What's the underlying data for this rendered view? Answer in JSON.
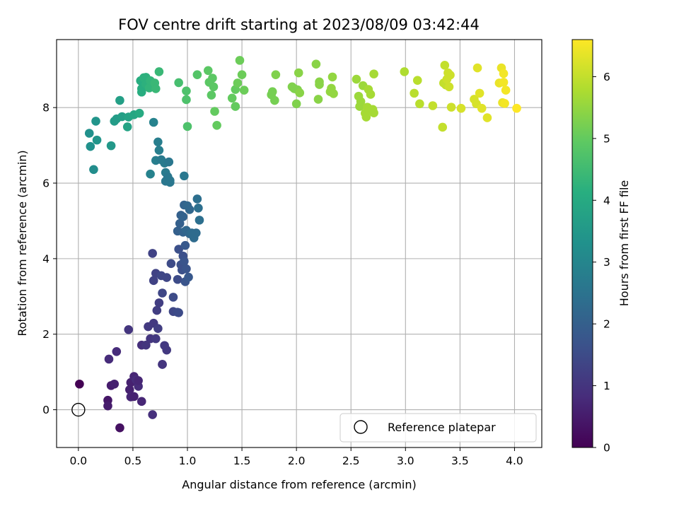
{
  "chart_data": {
    "type": "scatter",
    "title": "FOV centre drift starting at 2023/08/09 03:42:44",
    "xlabel": "Angular distance from reference (arcmin)",
    "ylabel": "Rotation from reference (arcmin)",
    "xlim": [
      -0.2,
      4.25
    ],
    "ylim": [
      -1.0,
      9.8
    ],
    "xticks": [
      "0.0",
      "0.5",
      "1.0",
      "1.5",
      "2.0",
      "2.5",
      "3.0",
      "3.5",
      "4.0"
    ],
    "yticks": [
      "0",
      "2",
      "4",
      "6",
      "8"
    ],
    "grid": true,
    "legend": {
      "placement": "lower right",
      "entries": [
        "Reference platepar"
      ]
    },
    "reference_point": {
      "x": 0.0,
      "y": 0.0
    },
    "colorbar": {
      "label": "Hours from first FF file",
      "range": [
        0,
        6.6
      ],
      "ticks": [
        "0",
        "1",
        "2",
        "3",
        "4",
        "5",
        "6"
      ],
      "colormap": "viridis"
    },
    "series": [
      {
        "points": [
          [
            0.01,
            0.68,
            0.0
          ],
          [
            0.27,
            0.25,
            0.4
          ],
          [
            0.27,
            0.1,
            0.5
          ],
          [
            0.28,
            1.34,
            0.8
          ],
          [
            0.3,
            0.64,
            0.5
          ],
          [
            0.33,
            0.68,
            0.6
          ],
          [
            0.35,
            1.54,
            0.8
          ],
          [
            0.38,
            -0.48,
            0.3
          ],
          [
            0.46,
            2.12,
            1.0
          ],
          [
            0.47,
            0.53,
            0.6
          ],
          [
            0.48,
            0.72,
            0.6
          ],
          [
            0.48,
            0.34,
            0.7
          ],
          [
            0.51,
            0.88,
            0.7
          ],
          [
            0.51,
            0.35,
            0.6
          ],
          [
            0.53,
            0.79,
            0.8
          ],
          [
            0.55,
            0.62,
            0.8
          ],
          [
            0.55,
            0.77,
            0.7
          ],
          [
            0.58,
            0.22,
            0.7
          ],
          [
            0.58,
            1.71,
            0.9
          ],
          [
            0.62,
            1.71,
            1.0
          ],
          [
            0.64,
            2.2,
            1.1
          ],
          [
            0.66,
            1.88,
            1.0
          ],
          [
            0.68,
            -0.13,
            0.9
          ],
          [
            0.69,
            2.29,
            1.1
          ],
          [
            0.71,
            1.88,
            1.1
          ],
          [
            0.72,
            2.63,
            1.2
          ],
          [
            0.73,
            2.15,
            1.2
          ],
          [
            0.74,
            2.83,
            1.2
          ],
          [
            0.77,
            1.2,
            1.0
          ],
          [
            0.77,
            1.2,
            1.0
          ],
          [
            0.79,
            1.7,
            1.1
          ],
          [
            0.81,
            1.58,
            1.1
          ],
          [
            0.68,
            4.14,
            1.3
          ],
          [
            0.69,
            3.42,
            1.3
          ],
          [
            0.71,
            3.61,
            1.3
          ],
          [
            0.76,
            3.55,
            1.4
          ],
          [
            0.77,
            3.09,
            1.4
          ],
          [
            0.81,
            3.5,
            1.4
          ],
          [
            0.85,
            3.87,
            1.5
          ],
          [
            0.87,
            2.98,
            1.5
          ],
          [
            0.87,
            2.6,
            1.4
          ],
          [
            0.91,
            2.58,
            1.5
          ],
          [
            0.91,
            3.45,
            1.5
          ],
          [
            0.92,
            2.57,
            1.5
          ],
          [
            0.92,
            4.25,
            1.6
          ],
          [
            0.94,
            3.84,
            1.6
          ],
          [
            0.95,
            3.7,
            1.6
          ],
          [
            0.96,
            4.07,
            1.6
          ],
          [
            0.97,
            3.93,
            1.7
          ],
          [
            0.98,
            3.39,
            1.7
          ],
          [
            0.98,
            4.35,
            1.8
          ],
          [
            1.01,
            3.51,
            1.8
          ],
          [
            0.99,
            3.73,
            1.7
          ],
          [
            0.91,
            4.73,
            2.0
          ],
          [
            0.93,
            4.93,
            2.0
          ],
          [
            0.94,
            5.15,
            2.0
          ],
          [
            0.96,
            4.7,
            2.1
          ],
          [
            0.96,
            5.11,
            2.1
          ],
          [
            0.97,
            5.42,
            2.1
          ],
          [
            0.99,
            4.75,
            2.2
          ],
          [
            1.0,
            5.4,
            2.2
          ],
          [
            1.02,
            5.3,
            2.2
          ],
          [
            1.02,
            4.66,
            2.2
          ],
          [
            1.04,
            4.68,
            2.3
          ],
          [
            1.06,
            4.55,
            2.3
          ],
          [
            1.08,
            4.68,
            2.3
          ],
          [
            1.09,
            5.58,
            2.4
          ],
          [
            1.1,
            5.34,
            2.4
          ],
          [
            1.11,
            5.02,
            2.4
          ],
          [
            0.97,
            6.19,
            2.6
          ],
          [
            0.66,
            6.24,
            2.9
          ],
          [
            0.71,
            6.6,
            2.8
          ],
          [
            0.73,
            7.09,
            2.8
          ],
          [
            0.74,
            6.87,
            2.8
          ],
          [
            0.76,
            6.62,
            2.7
          ],
          [
            0.79,
            6.53,
            2.7
          ],
          [
            0.8,
            6.28,
            2.7
          ],
          [
            0.8,
            6.05,
            2.6
          ],
          [
            0.82,
            6.17,
            2.6
          ],
          [
            0.83,
            6.56,
            2.6
          ],
          [
            0.84,
            6.07,
            2.6
          ],
          [
            0.84,
            6.02,
            2.6
          ],
          [
            0.69,
            7.61,
            2.9
          ],
          [
            0.1,
            7.32,
            3.3
          ],
          [
            0.11,
            6.97,
            3.3
          ],
          [
            0.14,
            6.36,
            3.2
          ],
          [
            0.16,
            7.64,
            3.4
          ],
          [
            0.17,
            7.14,
            3.4
          ],
          [
            0.3,
            6.99,
            3.5
          ],
          [
            0.33,
            7.64,
            3.6
          ],
          [
            0.35,
            7.7,
            3.6
          ],
          [
            0.38,
            8.19,
            3.7
          ],
          [
            0.4,
            7.76,
            3.7
          ],
          [
            0.45,
            7.49,
            3.8
          ],
          [
            0.46,
            7.75,
            3.8
          ],
          [
            0.51,
            7.81,
            3.9
          ],
          [
            0.56,
            7.85,
            4.0
          ],
          [
            0.57,
            8.71,
            4.1
          ],
          [
            0.58,
            8.5,
            4.1
          ],
          [
            0.58,
            8.41,
            4.1
          ],
          [
            0.6,
            8.79,
            4.2
          ],
          [
            0.62,
            8.8,
            4.2
          ],
          [
            0.62,
            8.62,
            4.2
          ],
          [
            0.65,
            8.52,
            4.3
          ],
          [
            0.66,
            8.71,
            4.3
          ],
          [
            0.7,
            8.65,
            4.4
          ],
          [
            0.71,
            8.5,
            4.4
          ],
          [
            0.74,
            8.95,
            4.4
          ],
          [
            0.92,
            8.66,
            4.6
          ],
          [
            0.99,
            8.44,
            4.7
          ],
          [
            0.99,
            8.21,
            4.7
          ],
          [
            1.0,
            7.5,
            4.7
          ],
          [
            1.09,
            8.87,
            4.8
          ],
          [
            1.19,
            8.98,
            4.9
          ],
          [
            1.2,
            8.67,
            4.9
          ],
          [
            1.22,
            8.33,
            4.9
          ],
          [
            1.23,
            8.78,
            4.9
          ],
          [
            1.24,
            8.55,
            4.9
          ],
          [
            1.25,
            7.9,
            5.0
          ],
          [
            1.27,
            7.53,
            5.0
          ],
          [
            1.41,
            8.25,
            5.0
          ],
          [
            1.44,
            8.03,
            5.0
          ],
          [
            1.44,
            8.48,
            5.0
          ],
          [
            1.46,
            8.65,
            5.1
          ],
          [
            1.48,
            9.25,
            5.1
          ],
          [
            1.5,
            8.87,
            5.1
          ],
          [
            1.52,
            8.46,
            5.1
          ],
          [
            1.77,
            8.34,
            5.2
          ],
          [
            1.78,
            8.42,
            5.2
          ],
          [
            1.8,
            8.19,
            5.2
          ],
          [
            1.81,
            8.87,
            5.3
          ],
          [
            1.96,
            8.55,
            5.3
          ],
          [
            1.98,
            8.5,
            5.3
          ],
          [
            2.0,
            8.1,
            5.3
          ],
          [
            2.01,
            8.47,
            5.3
          ],
          [
            2.02,
            8.92,
            5.4
          ],
          [
            2.03,
            8.39,
            5.4
          ],
          [
            2.18,
            9.15,
            5.4
          ],
          [
            2.2,
            8.22,
            5.4
          ],
          [
            2.21,
            8.68,
            5.4
          ],
          [
            2.21,
            8.61,
            5.4
          ],
          [
            2.31,
            8.42,
            5.5
          ],
          [
            2.32,
            8.51,
            5.5
          ],
          [
            2.33,
            8.81,
            5.5
          ],
          [
            2.34,
            8.37,
            5.5
          ],
          [
            2.55,
            8.75,
            5.6
          ],
          [
            2.57,
            8.3,
            5.6
          ],
          [
            2.58,
            8.03,
            5.6
          ],
          [
            2.59,
            8.16,
            5.6
          ],
          [
            2.61,
            8.58,
            5.6
          ],
          [
            2.63,
            7.85,
            5.7
          ],
          [
            2.64,
            7.75,
            5.7
          ],
          [
            2.65,
            8.01,
            5.7
          ],
          [
            2.66,
            8.48,
            5.7
          ],
          [
            2.67,
            7.94,
            5.7
          ],
          [
            2.68,
            8.35,
            5.7
          ],
          [
            2.7,
            7.95,
            5.7
          ],
          [
            2.71,
            7.86,
            5.7
          ],
          [
            2.71,
            8.89,
            5.7
          ],
          [
            2.99,
            8.95,
            5.8
          ],
          [
            3.08,
            8.38,
            5.9
          ],
          [
            3.11,
            8.72,
            5.9
          ],
          [
            3.13,
            8.1,
            5.9
          ],
          [
            3.25,
            8.05,
            6.0
          ],
          [
            3.34,
            7.48,
            6.0
          ],
          [
            3.35,
            8.65,
            6.0
          ],
          [
            3.36,
            9.12,
            6.0
          ],
          [
            3.37,
            8.6,
            6.0
          ],
          [
            3.38,
            8.75,
            6.1
          ],
          [
            3.39,
            8.92,
            6.1
          ],
          [
            3.4,
            8.55,
            6.1
          ],
          [
            3.41,
            8.86,
            6.1
          ],
          [
            3.42,
            8.01,
            6.1
          ],
          [
            3.51,
            7.98,
            6.2
          ],
          [
            3.63,
            8.22,
            6.2
          ],
          [
            3.65,
            8.1,
            6.2
          ],
          [
            3.66,
            9.05,
            6.3
          ],
          [
            3.68,
            8.38,
            6.3
          ],
          [
            3.7,
            7.98,
            6.3
          ],
          [
            3.75,
            7.73,
            6.3
          ],
          [
            3.86,
            8.65,
            6.4
          ],
          [
            3.88,
            9.05,
            6.4
          ],
          [
            3.89,
            8.13,
            6.4
          ],
          [
            3.9,
            8.67,
            6.5
          ],
          [
            3.9,
            8.9,
            6.5
          ],
          [
            3.91,
            8.11,
            6.5
          ],
          [
            3.92,
            8.46,
            6.5
          ],
          [
            4.02,
            7.98,
            6.6
          ]
        ]
      }
    ]
  }
}
